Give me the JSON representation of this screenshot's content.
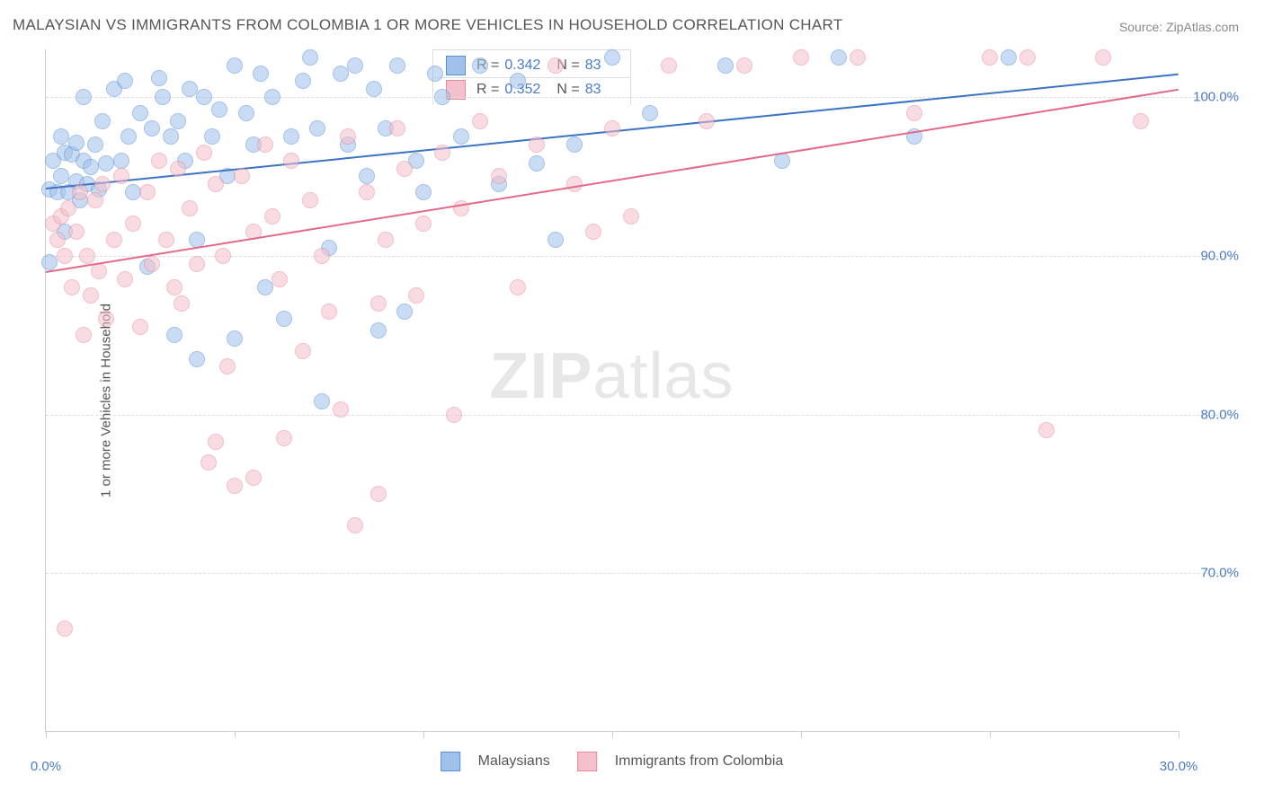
{
  "title": "MALAYSIAN VS IMMIGRANTS FROM COLOMBIA 1 OR MORE VEHICLES IN HOUSEHOLD CORRELATION CHART",
  "source_label": "Source:",
  "source_name": "ZipAtlas.com",
  "y_axis_label": "1 or more Vehicles in Household",
  "watermark_a": "ZIP",
  "watermark_b": "atlas",
  "chart": {
    "type": "scatter",
    "xlim": [
      0,
      30
    ],
    "ylim": [
      60,
      103
    ],
    "x_ticks": [
      0,
      30
    ],
    "x_tick_labels": [
      "0.0%",
      "30.0%"
    ],
    "x_minor_ticks": [
      5,
      10,
      15,
      20,
      25
    ],
    "y_ticks": [
      70,
      80,
      90,
      100
    ],
    "y_tick_labels": [
      "70.0%",
      "80.0%",
      "90.0%",
      "100.0%"
    ],
    "grid_color": "#dddddd",
    "background_color": "#ffffff",
    "point_radius": 9,
    "point_opacity": 0.55,
    "series": [
      {
        "name": "Malaysians",
        "fill": "#9fc1ea",
        "stroke": "#5a8fd6",
        "trend": {
          "x1": 0,
          "y1": 94.3,
          "x2": 30,
          "y2": 101.5,
          "color": "#3b74c5",
          "width": 2
        },
        "r_label": "R =",
        "r_value": "0.342",
        "n_label": "N =",
        "n_value": "83",
        "points": [
          [
            0.1,
            94.2
          ],
          [
            0.1,
            89.6
          ],
          [
            0.2,
            96.0
          ],
          [
            0.3,
            94.0
          ],
          [
            0.4,
            95.0
          ],
          [
            0.4,
            97.5
          ],
          [
            0.5,
            96.5
          ],
          [
            0.5,
            91.5
          ],
          [
            0.6,
            94.0
          ],
          [
            0.7,
            96.4
          ],
          [
            0.8,
            94.7
          ],
          [
            0.8,
            97.1
          ],
          [
            0.9,
            93.5
          ],
          [
            1.0,
            96.0
          ],
          [
            1.0,
            100.0
          ],
          [
            1.1,
            94.5
          ],
          [
            1.2,
            95.6
          ],
          [
            1.3,
            97.0
          ],
          [
            1.4,
            94.2
          ],
          [
            1.5,
            98.5
          ],
          [
            1.6,
            95.8
          ],
          [
            1.8,
            100.5
          ],
          [
            2.0,
            96.0
          ],
          [
            2.1,
            101.0
          ],
          [
            2.2,
            97.5
          ],
          [
            2.3,
            94.0
          ],
          [
            2.5,
            99.0
          ],
          [
            2.7,
            89.3
          ],
          [
            2.8,
            98.0
          ],
          [
            3.0,
            101.2
          ],
          [
            3.1,
            100.0
          ],
          [
            3.3,
            97.5
          ],
          [
            3.4,
            85.0
          ],
          [
            3.5,
            98.5
          ],
          [
            3.7,
            96.0
          ],
          [
            3.8,
            100.5
          ],
          [
            4.0,
            83.5
          ],
          [
            4.0,
            91.0
          ],
          [
            4.2,
            100.0
          ],
          [
            4.4,
            97.5
          ],
          [
            4.6,
            99.2
          ],
          [
            4.8,
            95.0
          ],
          [
            5.0,
            102.0
          ],
          [
            5.0,
            84.8
          ],
          [
            5.3,
            99.0
          ],
          [
            5.5,
            97.0
          ],
          [
            5.7,
            101.5
          ],
          [
            5.8,
            88.0
          ],
          [
            6.0,
            100.0
          ],
          [
            6.3,
            86.0
          ],
          [
            6.5,
            97.5
          ],
          [
            6.8,
            101.0
          ],
          [
            7.0,
            102.5
          ],
          [
            7.2,
            98.0
          ],
          [
            7.3,
            80.8
          ],
          [
            7.5,
            90.5
          ],
          [
            7.8,
            101.5
          ],
          [
            8.0,
            97.0
          ],
          [
            8.2,
            102.0
          ],
          [
            8.5,
            95.0
          ],
          [
            8.7,
            100.5
          ],
          [
            8.8,
            85.3
          ],
          [
            9.0,
            98.0
          ],
          [
            9.3,
            102.0
          ],
          [
            9.5,
            86.5
          ],
          [
            9.8,
            96.0
          ],
          [
            10.0,
            94.0
          ],
          [
            10.3,
            101.5
          ],
          [
            10.5,
            100.0
          ],
          [
            11.0,
            97.5
          ],
          [
            11.5,
            102.0
          ],
          [
            12.0,
            94.5
          ],
          [
            12.5,
            101.0
          ],
          [
            13.0,
            95.8
          ],
          [
            13.5,
            91.0
          ],
          [
            14.0,
            97.0
          ],
          [
            15.0,
            102.5
          ],
          [
            16.0,
            99.0
          ],
          [
            18.0,
            102.0
          ],
          [
            19.5,
            96.0
          ],
          [
            21.0,
            102.5
          ],
          [
            23.0,
            97.5
          ],
          [
            25.5,
            102.5
          ]
        ]
      },
      {
        "name": "Immigrants from Colombia",
        "fill": "#f4c0cb",
        "stroke": "#e88aa0",
        "trend": {
          "x1": 0,
          "y1": 89.0,
          "x2": 30,
          "y2": 100.5,
          "color": "#e26a88",
          "width": 2
        },
        "r_label": "R =",
        "r_value": "0.352",
        "n_label": "N =",
        "n_value": "83",
        "points": [
          [
            0.2,
            92.0
          ],
          [
            0.3,
            91.0
          ],
          [
            0.4,
            92.5
          ],
          [
            0.5,
            90.0
          ],
          [
            0.5,
            66.5
          ],
          [
            0.6,
            93.0
          ],
          [
            0.7,
            88.0
          ],
          [
            0.8,
            91.5
          ],
          [
            0.9,
            94.0
          ],
          [
            1.0,
            85.0
          ],
          [
            1.1,
            90.0
          ],
          [
            1.2,
            87.5
          ],
          [
            1.3,
            93.5
          ],
          [
            1.4,
            89.0
          ],
          [
            1.5,
            94.5
          ],
          [
            1.6,
            86.0
          ],
          [
            1.8,
            91.0
          ],
          [
            2.0,
            95.0
          ],
          [
            2.1,
            88.5
          ],
          [
            2.3,
            92.0
          ],
          [
            2.5,
            85.5
          ],
          [
            2.7,
            94.0
          ],
          [
            2.8,
            89.5
          ],
          [
            3.0,
            96.0
          ],
          [
            3.2,
            91.0
          ],
          [
            3.4,
            88.0
          ],
          [
            3.5,
            95.5
          ],
          [
            3.6,
            87.0
          ],
          [
            3.8,
            93.0
          ],
          [
            4.0,
            89.5
          ],
          [
            4.2,
            96.5
          ],
          [
            4.3,
            77.0
          ],
          [
            4.5,
            94.5
          ],
          [
            4.5,
            78.3
          ],
          [
            4.7,
            90.0
          ],
          [
            4.8,
            83.0
          ],
          [
            5.0,
            75.5
          ],
          [
            5.2,
            95.0
          ],
          [
            5.5,
            91.5
          ],
          [
            5.5,
            76.0
          ],
          [
            5.8,
            97.0
          ],
          [
            6.0,
            92.5
          ],
          [
            6.2,
            88.5
          ],
          [
            6.3,
            78.5
          ],
          [
            6.5,
            96.0
          ],
          [
            6.8,
            84.0
          ],
          [
            7.0,
            93.5
          ],
          [
            7.3,
            90.0
          ],
          [
            7.5,
            86.5
          ],
          [
            7.8,
            80.3
          ],
          [
            8.0,
            97.5
          ],
          [
            8.2,
            73.0
          ],
          [
            8.5,
            94.0
          ],
          [
            8.8,
            87.0
          ],
          [
            8.8,
            75.0
          ],
          [
            9.0,
            91.0
          ],
          [
            9.3,
            98.0
          ],
          [
            9.5,
            95.5
          ],
          [
            9.8,
            87.5
          ],
          [
            10.0,
            92.0
          ],
          [
            10.5,
            96.5
          ],
          [
            10.8,
            80.0
          ],
          [
            11.0,
            93.0
          ],
          [
            11.5,
            98.5
          ],
          [
            12.0,
            95.0
          ],
          [
            12.5,
            88.0
          ],
          [
            13.0,
            97.0
          ],
          [
            13.5,
            102.0
          ],
          [
            14.0,
            94.5
          ],
          [
            14.5,
            91.5
          ],
          [
            15.0,
            98.0
          ],
          [
            15.5,
            92.5
          ],
          [
            16.5,
            102.0
          ],
          [
            17.5,
            98.5
          ],
          [
            18.5,
            102.0
          ],
          [
            20.0,
            102.5
          ],
          [
            21.5,
            102.5
          ],
          [
            23.0,
            99.0
          ],
          [
            25.0,
            102.5
          ],
          [
            26.5,
            79.0
          ],
          [
            26.0,
            102.5
          ],
          [
            28.0,
            102.5
          ],
          [
            29.0,
            98.5
          ]
        ]
      }
    ]
  },
  "legend_bottom": [
    {
      "label": "Malaysians",
      "fill": "#9fc1ea",
      "stroke": "#5a8fd6"
    },
    {
      "label": "Immigrants from Colombia",
      "fill": "#f4c0cb",
      "stroke": "#e88aa0"
    }
  ]
}
